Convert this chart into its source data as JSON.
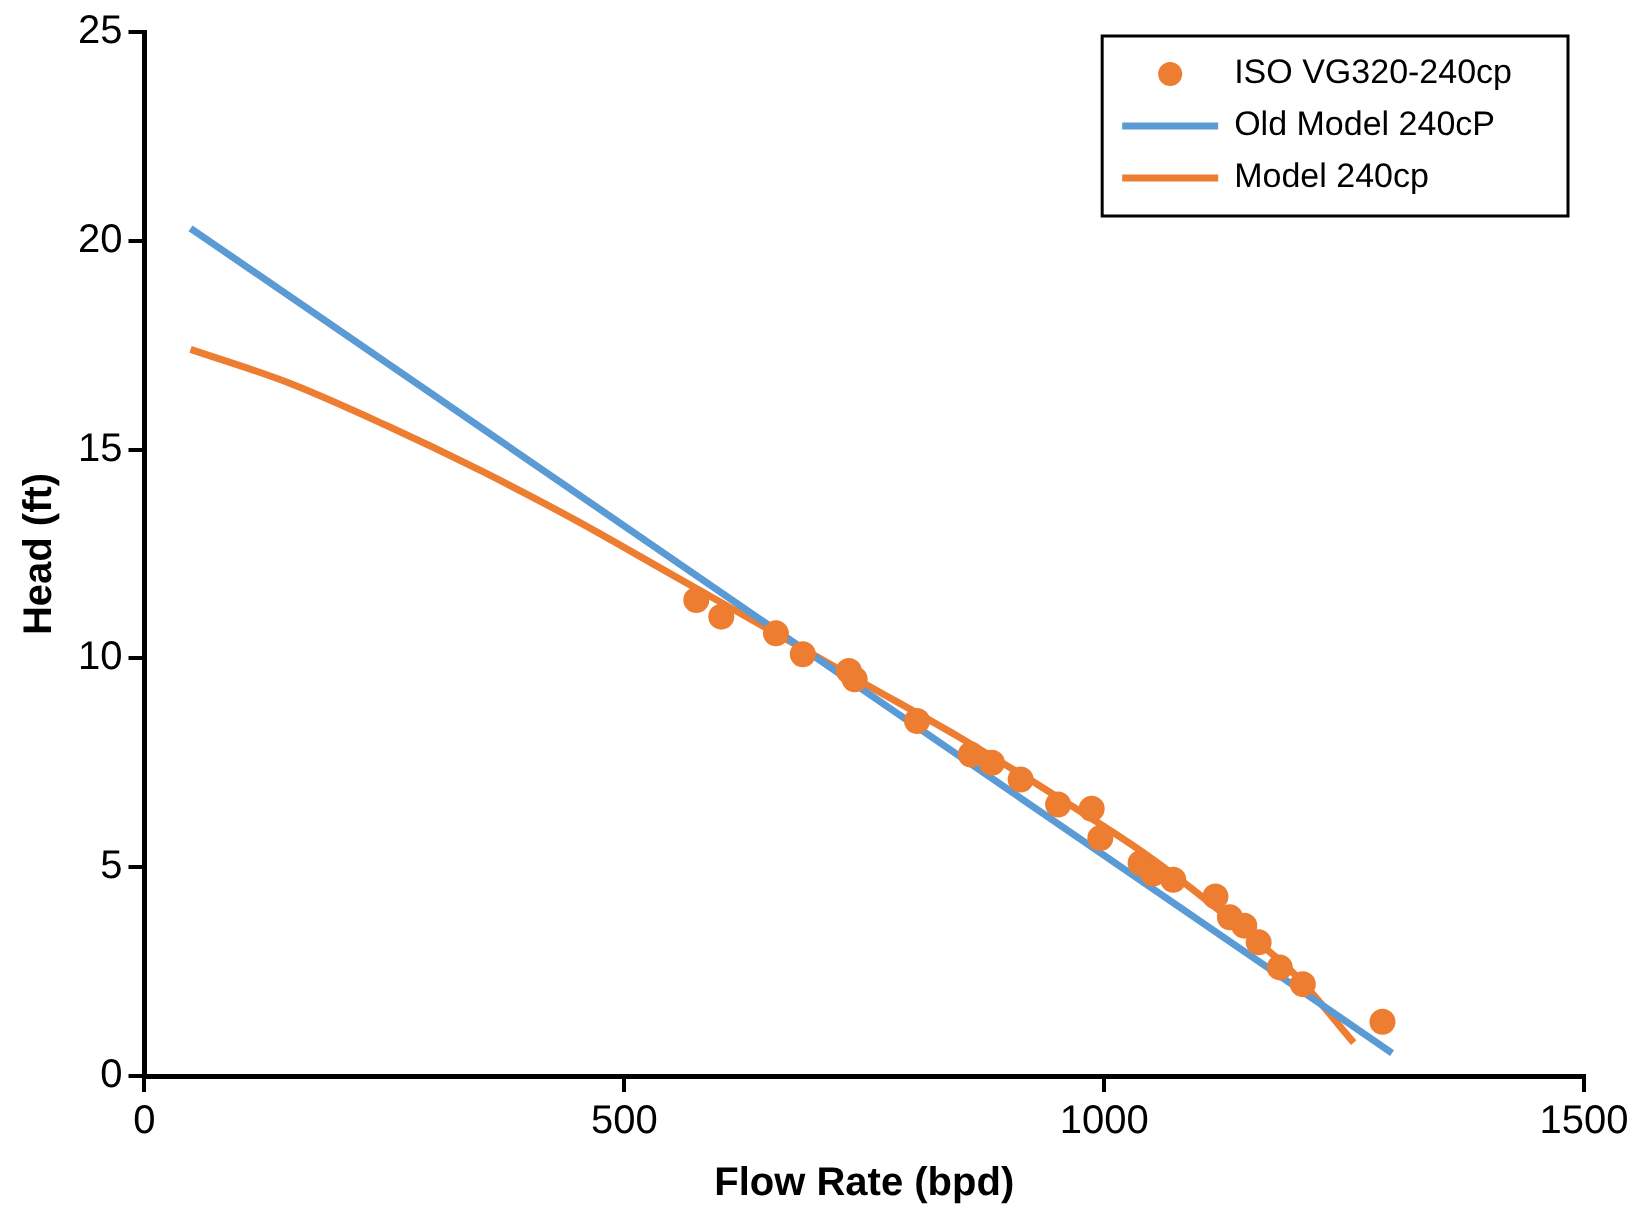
{
  "chart_data": {
    "type": "scatter",
    "xlabel": "Flow Rate (bpd)",
    "ylabel": "Head (ft)",
    "xlim": [
      0,
      1500
    ],
    "xticks": [
      0,
      500,
      1000,
      1500
    ],
    "ylim": [
      0,
      25
    ],
    "yticks": [
      0,
      5,
      10,
      15,
      20,
      25
    ],
    "grid": false,
    "legend": "top right",
    "series": [
      {
        "name": "ISO VG320-240cp",
        "type": "scatter",
        "marker": "circle",
        "color": "#ed7d31",
        "x": [
          575,
          601,
          658,
          686,
          734,
          740,
          805,
          861,
          883,
          913,
          952,
          987,
          996,
          1038,
          1051,
          1072,
          1116,
          1131,
          1146,
          1161,
          1183,
          1207,
          1290
        ],
        "values": [
          11.4,
          11.0,
          10.6,
          10.1,
          9.7,
          9.5,
          8.5,
          7.7,
          7.5,
          7.1,
          6.5,
          6.4,
          5.7,
          5.1,
          4.85,
          4.7,
          4.3,
          3.8,
          3.6,
          3.2,
          2.6,
          2.2,
          1.3
        ]
      },
      {
        "name": "Old Model 240cP",
        "type": "line",
        "marker": "none",
        "color": "#5b9bd5",
        "x": [
          48,
          1300
        ],
        "values": [
          20.3,
          0.55
        ]
      },
      {
        "name": "Model 240cp",
        "type": "line",
        "marker": "none",
        "color": "#ed7d31",
        "x": [
          48,
          150,
          250,
          350,
          450,
          550,
          650,
          750,
          850,
          950,
          1050,
          1150,
          1200,
          1260
        ],
        "values": [
          17.4,
          16.6,
          15.6,
          14.5,
          13.3,
          12.0,
          10.7,
          9.4,
          8.1,
          6.7,
          5.2,
          3.4,
          2.4,
          0.8
        ]
      }
    ]
  }
}
